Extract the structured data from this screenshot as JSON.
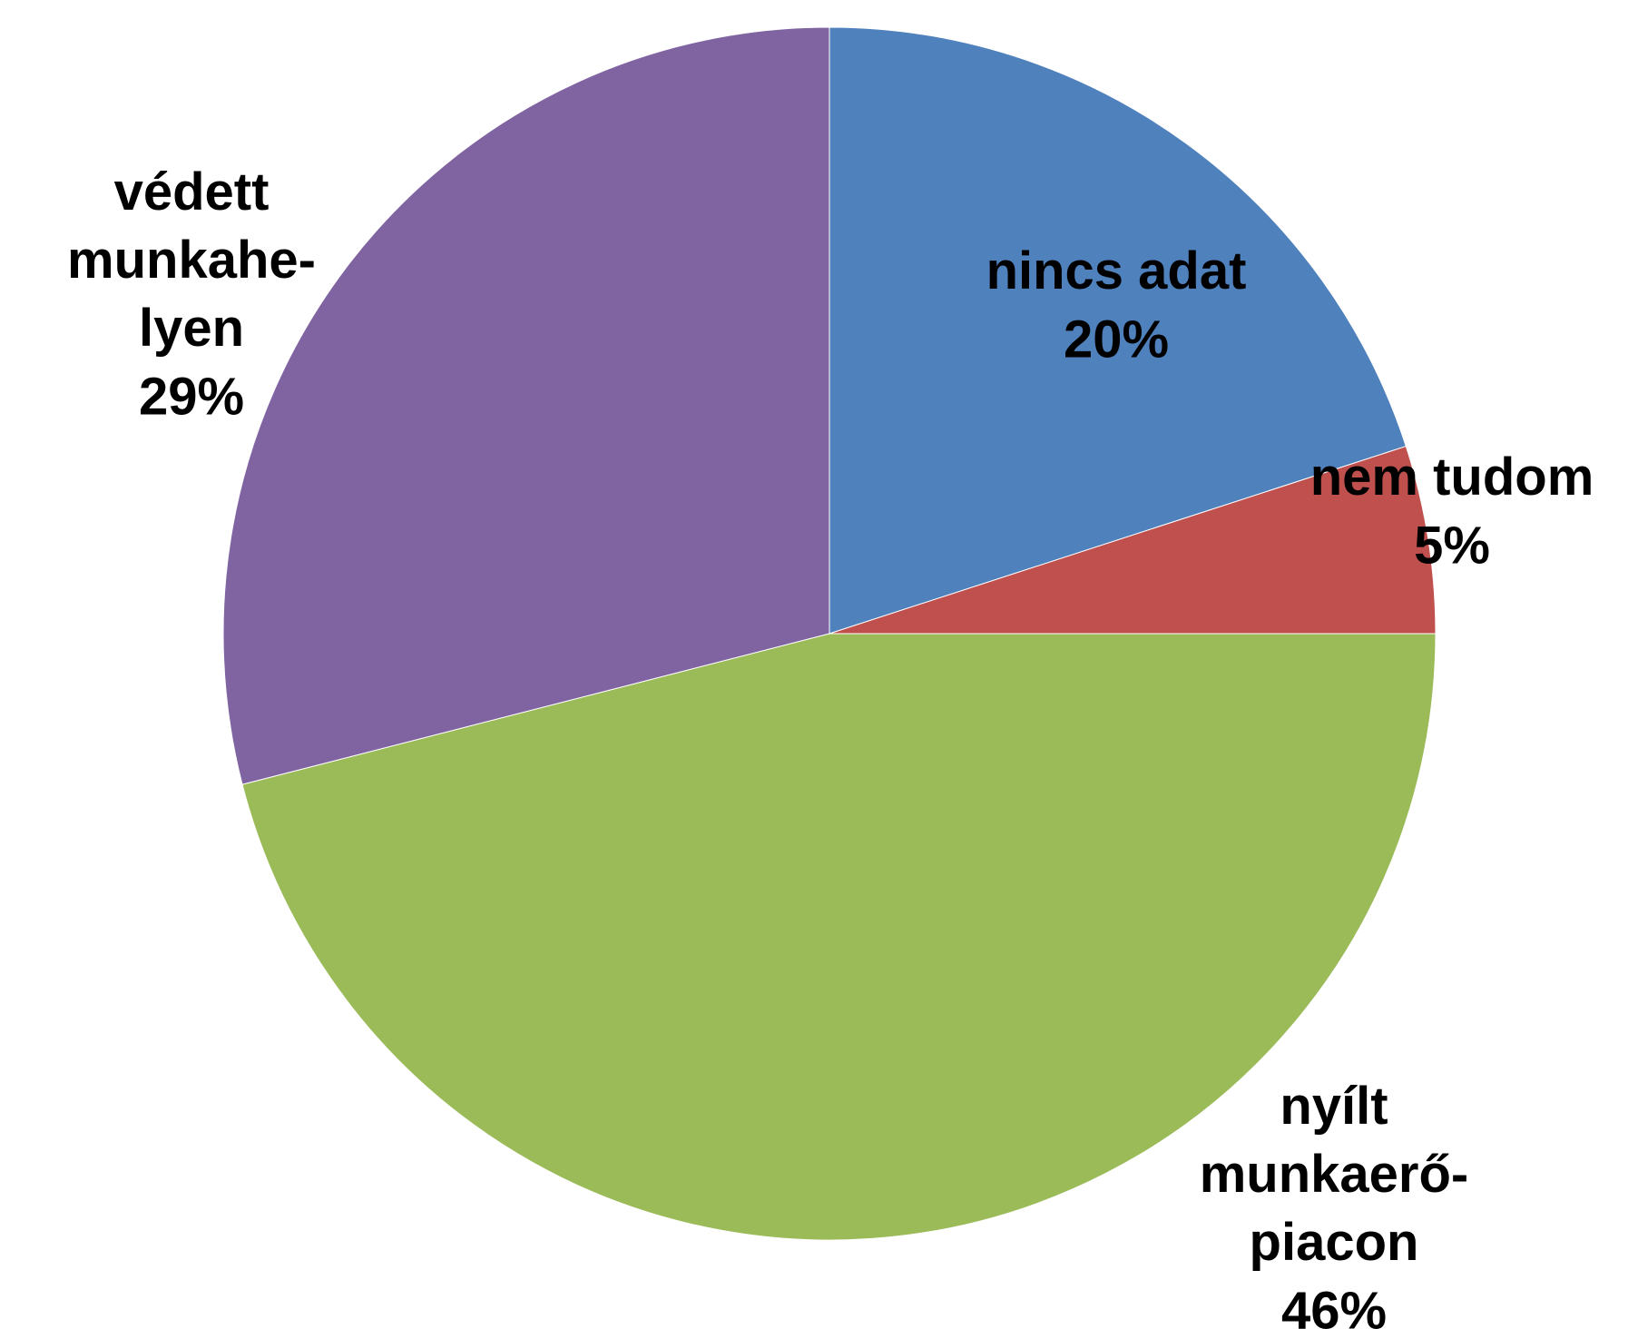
{
  "chart_data": {
    "type": "pie",
    "categories": [
      "nincs adat",
      "nem tudom",
      "nyílt\nmunkaerő-\npiacon",
      "védett\nmunkahe-\nlyen"
    ],
    "values": [
      20,
      5,
      46,
      29
    ],
    "value_labels": [
      "20%",
      "5%",
      "46%",
      "29%"
    ],
    "colors": [
      "#4f81bd",
      "#c0504d",
      "#9bbb59",
      "#8064a2"
    ]
  }
}
